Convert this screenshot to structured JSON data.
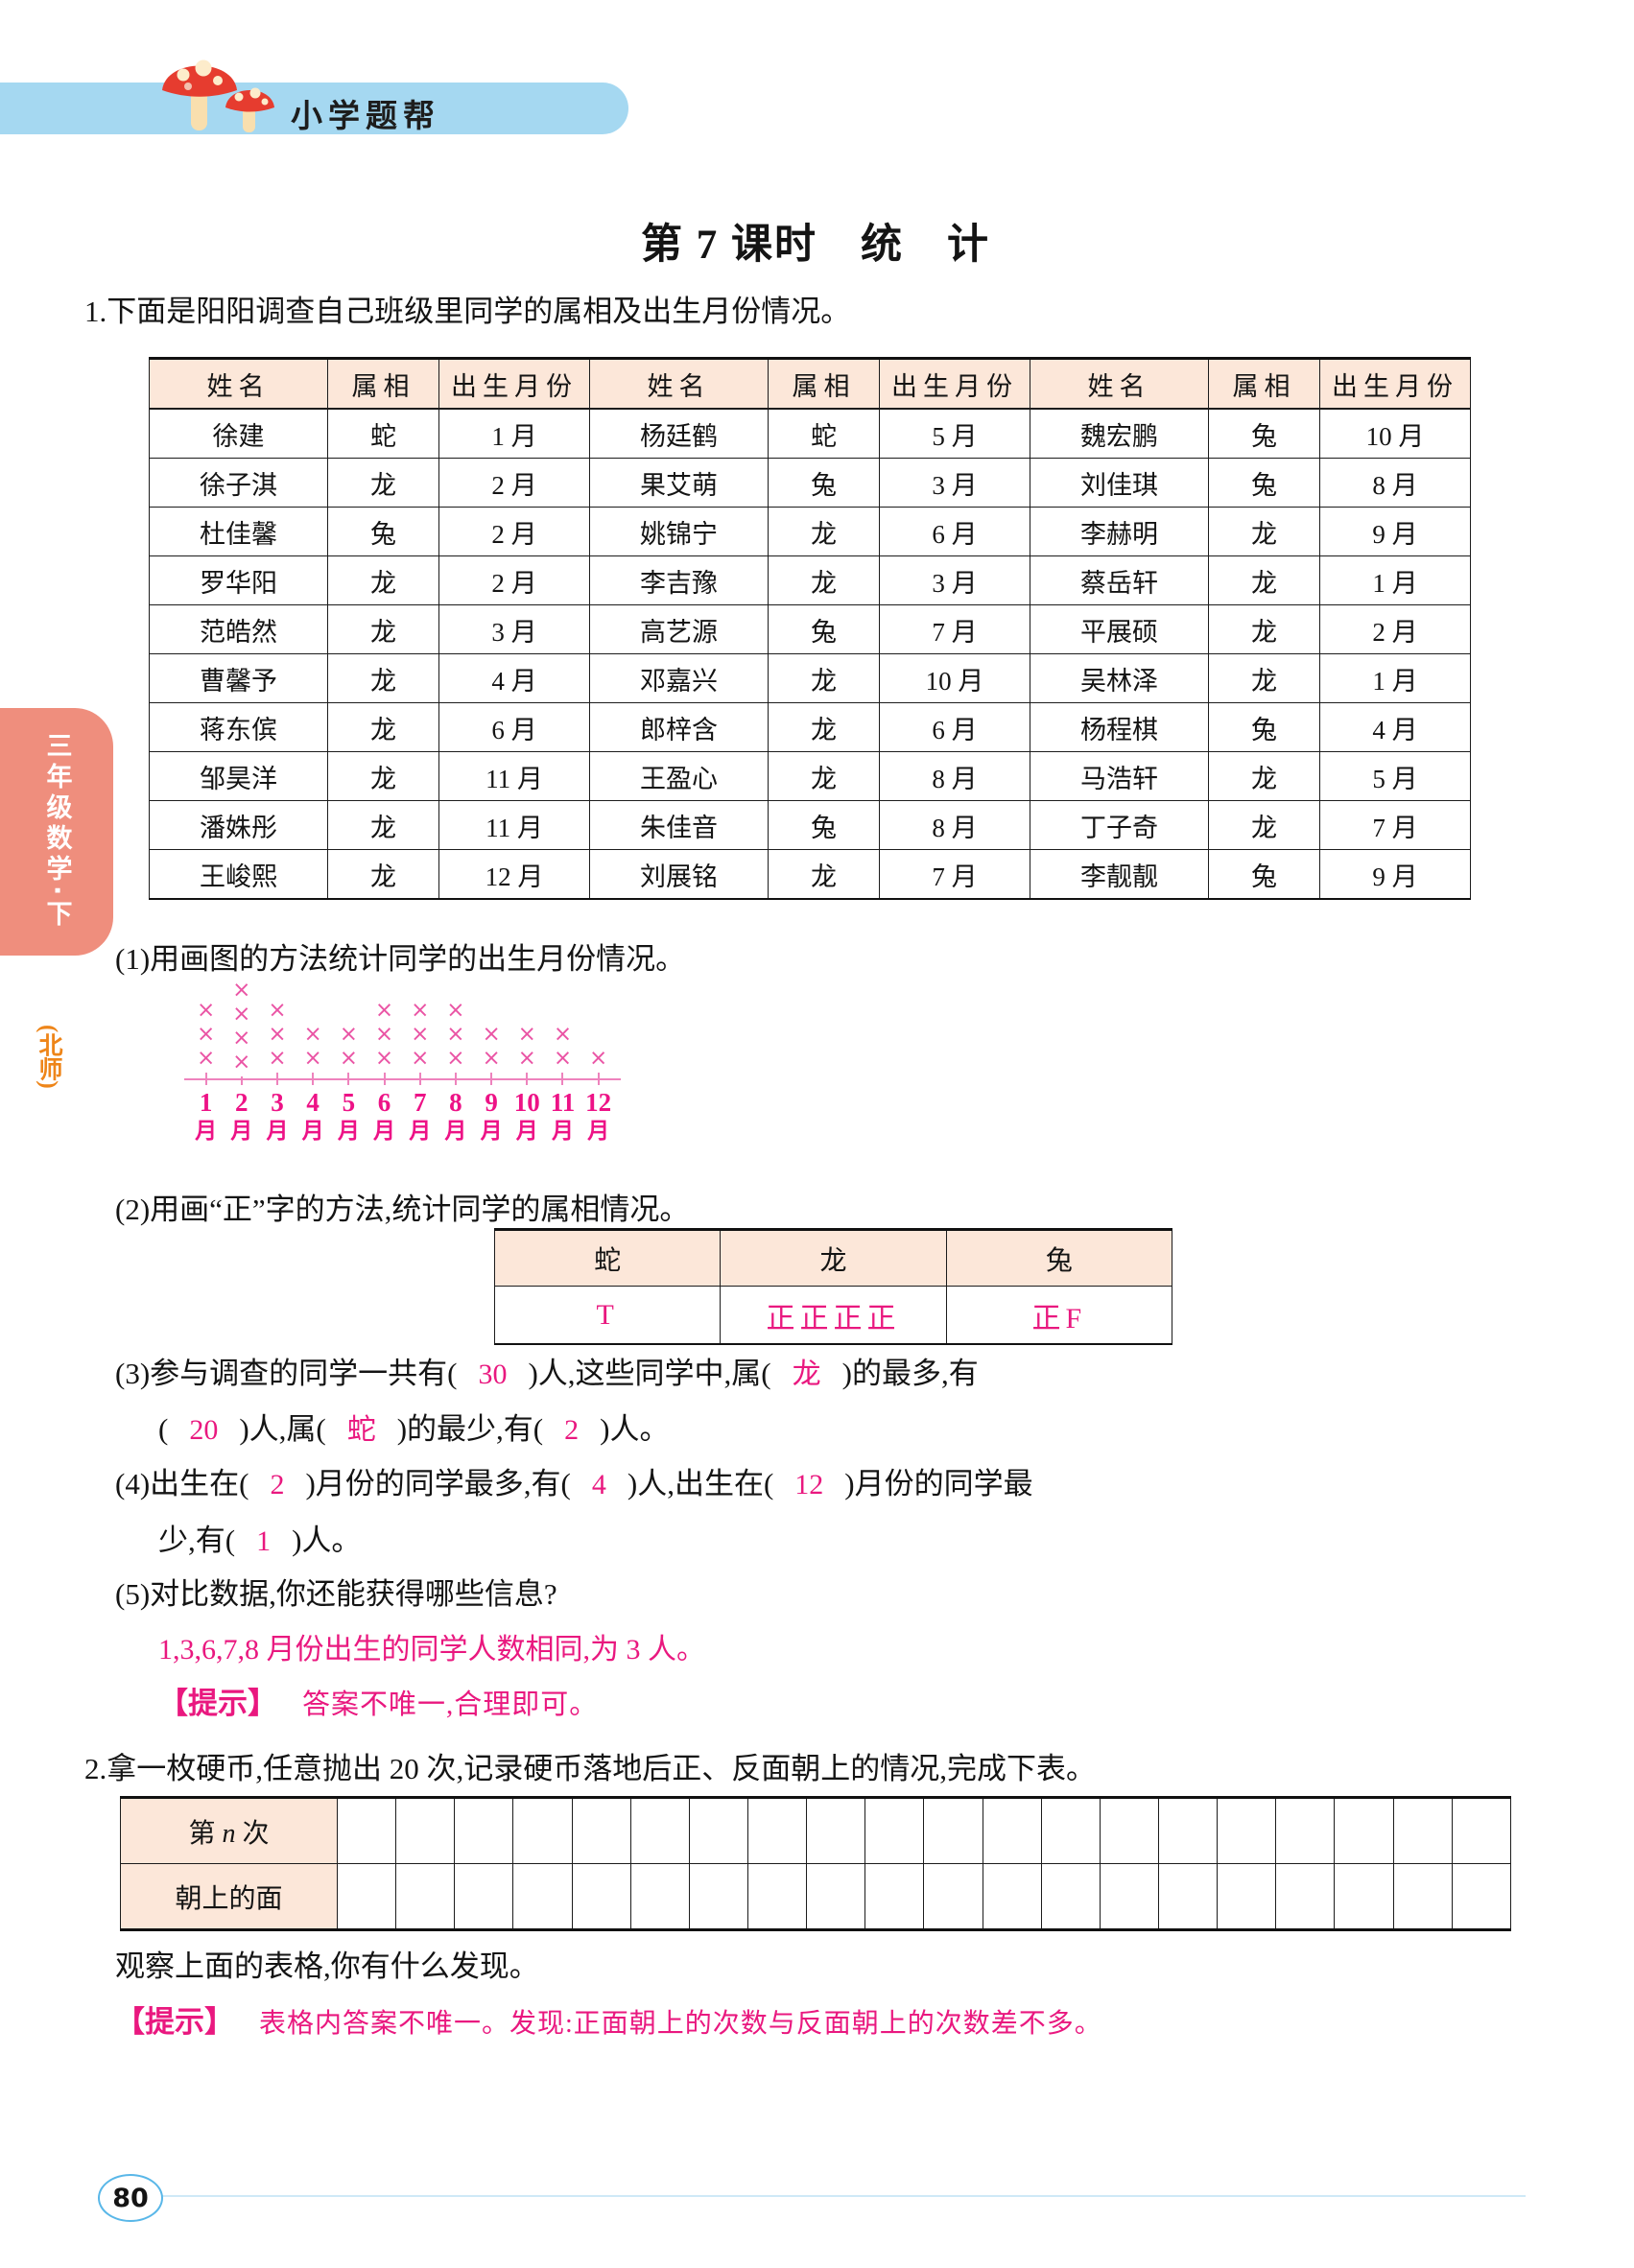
{
  "page": {
    "brand": "小学题帮",
    "grade_tab": "三年级数学·下",
    "publisher_tab": "(北师)",
    "page_number": "80",
    "title": "第 7 课时　统　计"
  },
  "colors": {
    "accent_pink": "#e9187f",
    "chart_mark_pink": "#ea55a5",
    "chart_label_magenta": "#ed1286",
    "table_header_peach": "#fce7d9",
    "banner_blue": "#a5d8f1",
    "side_tab_salmon": "#ef8e7d",
    "publisher_orange": "#ee8519",
    "badge_blue": "#59b7e8"
  },
  "q1": {
    "prompt": "1.下面是阳阳调查自己班级里同学的属相及出生月份情况。",
    "table": {
      "headers": [
        "姓名",
        "属相",
        "出生月份",
        "姓名",
        "属相",
        "出生月份",
        "姓名",
        "属相",
        "出生月份"
      ],
      "rows": [
        [
          "徐建",
          "蛇",
          "1 月",
          "杨廷鹤",
          "蛇",
          "5 月",
          "魏宏鹏",
          "兔",
          "10 月"
        ],
        [
          "徐子淇",
          "龙",
          "2 月",
          "果艾萌",
          "兔",
          "3 月",
          "刘佳琪",
          "兔",
          "8 月"
        ],
        [
          "杜佳馨",
          "兔",
          "2 月",
          "姚锦宁",
          "龙",
          "6 月",
          "李赫明",
          "龙",
          "9 月"
        ],
        [
          "罗华阳",
          "龙",
          "2 月",
          "李吉豫",
          "龙",
          "3 月",
          "蔡岳轩",
          "龙",
          "1 月"
        ],
        [
          "范皓然",
          "龙",
          "3 月",
          "高艺源",
          "兔",
          "7 月",
          "平展硕",
          "龙",
          "2 月"
        ],
        [
          "曹馨予",
          "龙",
          "4 月",
          "邓嘉兴",
          "龙",
          "10 月",
          "吴林泽",
          "龙",
          "1 月"
        ],
        [
          "蒋东傧",
          "龙",
          "6 月",
          "郎梓含",
          "龙",
          "6 月",
          "杨程棋",
          "兔",
          "4 月"
        ],
        [
          "邹昊洋",
          "龙",
          "11 月",
          "王盈心",
          "龙",
          "8 月",
          "马浩轩",
          "龙",
          "5 月"
        ],
        [
          "潘姝彤",
          "龙",
          "11 月",
          "朱佳音",
          "兔",
          "8 月",
          "丁子奇",
          "龙",
          "7 月"
        ],
        [
          "王峻熙",
          "龙",
          "12 月",
          "刘展铭",
          "龙",
          "7 月",
          "李靓靓",
          "兔",
          "9 月"
        ]
      ]
    },
    "sub1_label": "(1)用画图的方法统计同学的出生月份情况。",
    "sub2_label": "(2)用画“正”字的方法,统计同学的属相情况。",
    "tally": {
      "headers": [
        "蛇",
        "龙",
        "兔"
      ],
      "marks": [
        "T",
        "正正正正",
        "正F"
      ],
      "counts": [
        2,
        20,
        8
      ]
    },
    "sub3": {
      "t1": "(3)参与调查的同学一共有(",
      "a1": "30",
      "t2": ")人,这些同学中,属(",
      "a2": "龙",
      "t3": ")的最多,有",
      "t4": "(",
      "a3": "20",
      "t5": ")人,属(",
      "a4": "蛇",
      "t6": ")的最少,有(",
      "a5": "2",
      "t7": ")人。"
    },
    "sub4": {
      "t1": "(4)出生在(",
      "a1": "2",
      "t2": ")月份的同学最多,有(",
      "a2": "4",
      "t3": ")人,出生在(",
      "a3": "12",
      "t4": ")月份的同学最",
      "t5": "少,有(",
      "a4": "1",
      "t6": ")人。"
    },
    "sub5": {
      "label": "(5)对比数据,你还能获得哪些信息?",
      "answer": "1,3,6,7,8 月份出生的同学人数相同,为 3 人。",
      "hint_label": "【提示】",
      "hint": "答案不唯一,合理即可。"
    }
  },
  "q2": {
    "prompt": "2.拿一枚硬币,任意抛出 20 次,记录硬币落地后正、反面朝上的情况,完成下表。",
    "row1_pre": "第 ",
    "row1_var": "n",
    "row1_post": " 次",
    "row2_label": "朝上的面",
    "blank_cols": 20,
    "observe": "观察上面的表格,你有什么发现。",
    "hint_label": "【提示】",
    "hint": "表格内答案不唯一。发现:正面朝上的次数与反面朝上的次数差不多。"
  },
  "chart_data": {
    "type": "bar",
    "style": "pictograph",
    "symbol": "×",
    "symbol_unit": 1,
    "categories": [
      "1月",
      "2月",
      "3月",
      "4月",
      "5月",
      "6月",
      "7月",
      "8月",
      "9月",
      "10月",
      "11月",
      "12月"
    ],
    "values": [
      3,
      4,
      3,
      2,
      2,
      3,
      3,
      3,
      2,
      2,
      2,
      1
    ],
    "title": "",
    "xlabel": "",
    "ylabel": "",
    "ylim": [
      0,
      4
    ],
    "grid": false,
    "legend": false
  }
}
